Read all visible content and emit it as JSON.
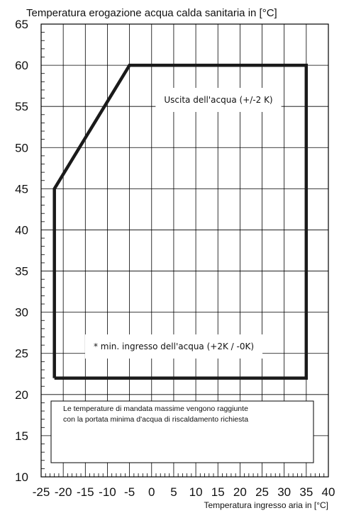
{
  "chart_data": {
    "type": "area",
    "title": "Temperatura erogazione acqua calda sanitaria in [°C]",
    "xlabel": "Temperatura ingresso aria in [°C]",
    "ylabel": "",
    "xlim": [
      -25,
      40
    ],
    "ylim": [
      10,
      65
    ],
    "x_ticks": [
      -25,
      -20,
      -15,
      -10,
      -5,
      0,
      5,
      10,
      15,
      20,
      25,
      30,
      35,
      40
    ],
    "y_ticks": [
      10,
      15,
      20,
      25,
      30,
      35,
      40,
      45,
      50,
      55,
      60,
      65
    ],
    "grid": true,
    "series": [
      {
        "x": [
          -22,
          -22,
          -5,
          35,
          35,
          -22
        ],
        "y": [
          22,
          45,
          60,
          60,
          22,
          22
        ]
      }
    ],
    "annotations": {
      "upper": "Uscita dell'acqua (+/-2 K)",
      "lower": "* min. ingresso dell'acqua (+2K / -0K)",
      "note_line1": "Le temperature di mandata massime vengono raggiunte",
      "note_line2": "con la portata minima d'acqua di riscaldamento richiesta"
    }
  }
}
